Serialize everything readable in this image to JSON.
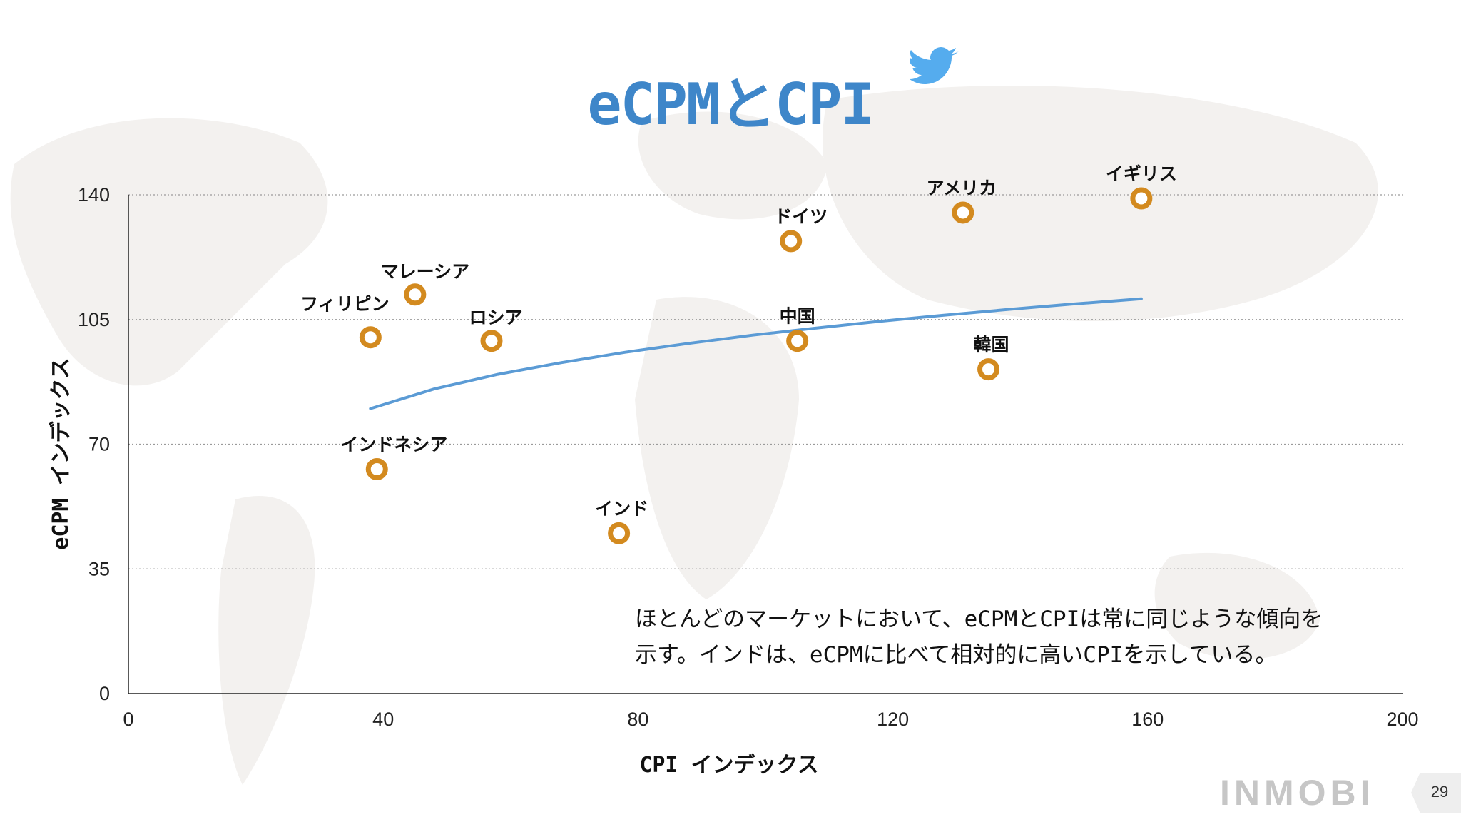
{
  "slide": {
    "title": "eCPMとCPI",
    "annotation_lines": [
      "ほとんどのマーケットにおいて、eCPMとCPIは常に同じような傾向を",
      "示す。インドは、eCPMに比べて相対的に高いCPIを示している。"
    ],
    "logo": "INMOBI",
    "page_number": "29",
    "icon": "twitter-bird-icon"
  },
  "colors": {
    "title": "#3e86c9",
    "marker": "#d38a1f",
    "trendline": "#5b9bd5",
    "gridline": "#9a9a9a"
  },
  "chart_data": {
    "type": "scatter",
    "xlabel": "CPI インデックス",
    "ylabel": "eCPM インデックス",
    "xlim": [
      0,
      200
    ],
    "ylim": [
      0,
      140
    ],
    "x_ticks": [
      "0",
      "40",
      "80",
      "120",
      "160",
      "200"
    ],
    "y_ticks": [
      "0",
      "35",
      "70",
      "105",
      "140"
    ],
    "grid": "horizontal dotted",
    "points": [
      {
        "label": "フィリピン",
        "x": 38,
        "y": 100
      },
      {
        "label": "マレーシア",
        "x": 45,
        "y": 112
      },
      {
        "label": "ロシア",
        "x": 57,
        "y": 99
      },
      {
        "label": "インドネシア",
        "x": 39,
        "y": 63
      },
      {
        "label": "インド",
        "x": 77,
        "y": 45
      },
      {
        "label": "中国",
        "x": 105,
        "y": 99
      },
      {
        "label": "ドイツ",
        "x": 104,
        "y": 127
      },
      {
        "label": "アメリカ",
        "x": 131,
        "y": 135
      },
      {
        "label": "韓国",
        "x": 135,
        "y": 91
      },
      {
        "label": "イギリス",
        "x": 159,
        "y": 139
      }
    ],
    "trendline": {
      "type": "logarithmic",
      "x": [
        38,
        48,
        58,
        68,
        78,
        88,
        98,
        108,
        118,
        128,
        138,
        148,
        159
      ],
      "y": [
        80,
        85.5,
        89.6,
        92.9,
        95.8,
        98.3,
        100.6,
        102.6,
        104.5,
        106.2,
        107.8,
        109.3,
        110.8
      ]
    }
  }
}
